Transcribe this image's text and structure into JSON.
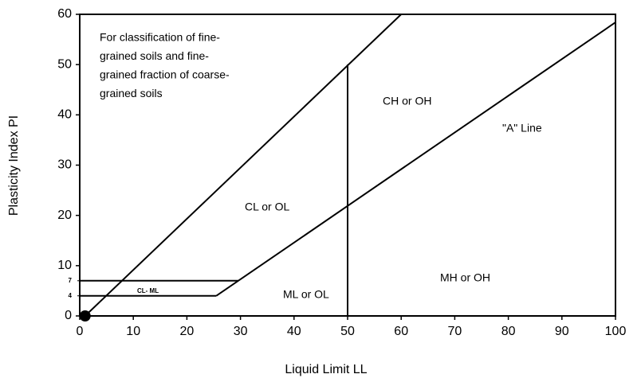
{
  "chart_data": {
    "type": "line",
    "xlabel": "Liquid Limit  LL",
    "ylabel": "Plasticity Index  PI",
    "xlim": [
      0,
      100
    ],
    "ylim": [
      0,
      60
    ],
    "xticks": [
      0,
      10,
      20,
      30,
      40,
      50,
      60,
      70,
      80,
      90,
      100
    ],
    "yticks": [
      0,
      10,
      20,
      30,
      40,
      50,
      60
    ],
    "minor_yticks": [
      7,
      4
    ],
    "color": "#000000",
    "lines": [
      {
        "x": [
          1,
          60
        ],
        "values": [
          0,
          60
        ]
      },
      {
        "x": [
          25.5,
          100
        ],
        "values": [
          4,
          58.4
        ]
      },
      {
        "x": [
          0,
          25.5
        ],
        "values": [
          4,
          4
        ]
      },
      {
        "x": [
          0,
          29.6
        ],
        "values": [
          7,
          7
        ]
      },
      {
        "x": [
          50,
          50
        ],
        "values": [
          0,
          50
        ]
      }
    ],
    "marker": {
      "x": 1,
      "y": 0
    },
    "note_lines": [
      "For classification of fine-",
      "grained soils and fine-",
      "grained fraction of coarse-",
      "grained soils"
    ],
    "annotations": [
      "CH or OH",
      "\"A\" Line",
      "CL or OL",
      "ML or OL",
      "MH or OH",
      "CL- ML"
    ]
  }
}
